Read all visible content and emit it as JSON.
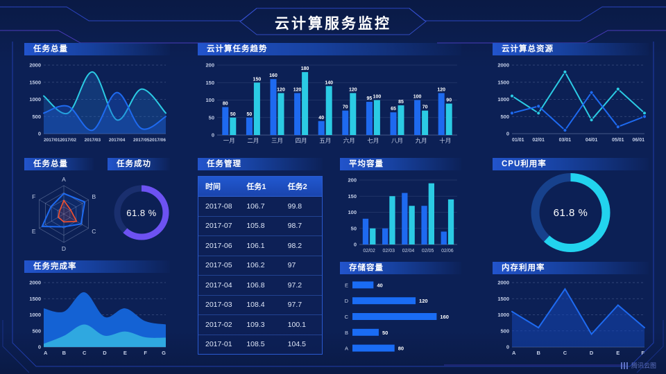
{
  "header": {
    "title": "云计算服务监控"
  },
  "watermark": {
    "label": "腾讯云图",
    "icon": "bars-logo-icon"
  },
  "panels": {
    "task_total_line": {
      "title": "任务总量"
    },
    "task_trend": {
      "title": "云计算任务趋势"
    },
    "cloud_resources": {
      "title": "云计算总资源"
    },
    "task_total_radar": {
      "title": "任务总量"
    },
    "task_success": {
      "title": "任务成功",
      "value": "61.8 %"
    },
    "task_table": {
      "title": "任务管理"
    },
    "avg_capacity": {
      "title": "平均容量"
    },
    "cpu_usage": {
      "title": "CPU利用率",
      "value": "61.8 %"
    },
    "task_completion": {
      "title": "任务完成率"
    },
    "storage": {
      "title": "存储容量"
    },
    "memory": {
      "title": "内存利用率"
    }
  },
  "table": {
    "columns": [
      "时间",
      "任务1",
      "任务2"
    ],
    "rows": [
      [
        "2017-08",
        "106.7",
        "99.8"
      ],
      [
        "2017-07",
        "105.8",
        "98.7"
      ],
      [
        "2017-06",
        "106.1",
        "98.2"
      ],
      [
        "2017-05",
        "106.2",
        "97"
      ],
      [
        "2017-04",
        "106.8",
        "97.2"
      ],
      [
        "2017-03",
        "108.4",
        "97.7"
      ],
      [
        "2017-02",
        "109.3",
        "100.1"
      ],
      [
        "2017-01",
        "108.5",
        "104.5"
      ]
    ]
  },
  "colors": {
    "blue": "#1e6af0",
    "cyan": "#2bcbe4",
    "purple": "#6d52f2",
    "orange": "#f4502e",
    "grid": "rgba(160,180,225,0.32)",
    "axis_text": "#c6d0e8",
    "frame_line": "#2945c0"
  },
  "chart_data": [
    {
      "id": "task_total_line",
      "type": "line",
      "title": "任务总量",
      "smooth": true,
      "area": true,
      "x": [
        "2017/01",
        "2017/02",
        "2017/03",
        "2017/04",
        "2017/05",
        "2017/06"
      ],
      "series": [
        {
          "name": "总量-cyan",
          "color": "#2bcbe4",
          "fill": "rgba(35,120,210,0.28)",
          "values": [
            1100,
            600,
            1800,
            400,
            1300,
            600
          ]
        },
        {
          "name": "总量-blue",
          "color": "#1e6af0",
          "fill": "rgba(25,90,210,0.38)",
          "values": [
            600,
            800,
            100,
            1200,
            150,
            500
          ]
        }
      ],
      "ylim": [
        0,
        2000
      ],
      "yticks": [
        0,
        500,
        1000,
        1500,
        2000
      ],
      "xfs": 6.5,
      "dashed_grid": true
    },
    {
      "id": "task_trend",
      "type": "bar",
      "title": "云计算任务趋势",
      "categories": [
        "一月",
        "二月",
        "三月",
        "四月",
        "五月",
        "六月",
        "七月",
        "八月",
        "九月",
        "十月"
      ],
      "series": [
        {
          "name": "任务1",
          "color": "#1e6af0",
          "values": [
            80,
            50,
            160,
            120,
            40,
            70,
            95,
            65,
            100,
            120
          ]
        },
        {
          "name": "任务2",
          "color": "#2bcbe4",
          "values": [
            50,
            150,
            120,
            180,
            140,
            120,
            100,
            85,
            70,
            90
          ]
        }
      ],
      "ylim": [
        0,
        200
      ],
      "yticks": [
        0,
        50,
        100,
        150,
        200
      ],
      "value_labels": true,
      "xfs": 8.5
    },
    {
      "id": "cloud_resources",
      "type": "line",
      "title": "云计算总资源",
      "smooth": false,
      "markers": true,
      "x": [
        "01/01",
        "02/01",
        "03/01",
        "04/01",
        "05/01",
        "06/01"
      ],
      "series": [
        {
          "name": "资源-cyan",
          "color": "#2bcbe4",
          "values": [
            1100,
            600,
            1800,
            400,
            1300,
            600
          ]
        },
        {
          "name": "资源-blue",
          "color": "#1e6af0",
          "values": [
            600,
            800,
            100,
            1200,
            200,
            500
          ]
        }
      ],
      "ylim": [
        0,
        2000
      ],
      "yticks": [
        0,
        500,
        1000,
        1500,
        2000
      ],
      "xfs": 7,
      "dashed_grid": true
    },
    {
      "id": "task_radar",
      "type": "radar",
      "title": "任务总量",
      "axes": [
        "A",
        "B",
        "C",
        "D",
        "E",
        "F"
      ],
      "max": 100,
      "series": [
        {
          "name": "radar-blue",
          "color": "#1e6af0",
          "fill": "rgba(30,106,240,0.12)",
          "values": [
            72,
            85,
            70,
            45,
            88,
            52
          ]
        },
        {
          "name": "radar-orange",
          "color": "#f4502e",
          "fill": "rgba(244,80,46,0.15)",
          "values": [
            48,
            28,
            52,
            28,
            22,
            18
          ]
        }
      ]
    },
    {
      "id": "task_success_gauge",
      "type": "donut",
      "title": "任务成功",
      "value": 61.8,
      "label": "61.8 %",
      "color": "#6d52f2",
      "track": "#1a2f6e",
      "stroke": 9
    },
    {
      "id": "avg_capacity",
      "type": "bar",
      "title": "平均容量",
      "categories": [
        "02/02",
        "02/03",
        "02/04",
        "02/05",
        "02/06"
      ],
      "series": [
        {
          "name": "容量1",
          "color": "#1e6af0",
          "values": [
            80,
            50,
            160,
            120,
            40
          ]
        },
        {
          "name": "容量2",
          "color": "#2bcbe4",
          "values": [
            50,
            150,
            120,
            190,
            140
          ]
        }
      ],
      "ylim": [
        0,
        200
      ],
      "yticks": [
        0,
        50,
        100,
        150,
        200
      ],
      "value_labels": false,
      "xfs": 7
    },
    {
      "id": "cpu_gauge",
      "type": "donut",
      "title": "CPU利用率",
      "value": 61.8,
      "label": "61.8 %",
      "color": "#22d3ee",
      "track": "#17418c",
      "stroke": 12
    },
    {
      "id": "task_completion",
      "type": "area",
      "title": "任务完成率",
      "smooth": true,
      "x": [
        "A",
        "B",
        "C",
        "D",
        "E",
        "F",
        "G"
      ],
      "series": [
        {
          "name": "完成-outer",
          "fill": "#1462d4",
          "values": [
            1200,
            1100,
            1700,
            930,
            1200,
            800,
            700
          ]
        },
        {
          "name": "完成-inner",
          "fill": "#2fa8e0",
          "values": [
            100,
            350,
            700,
            350,
            480,
            300,
            290
          ]
        }
      ],
      "ylim": [
        0,
        2000
      ],
      "yticks": [
        0,
        500,
        1000,
        1500,
        2000
      ],
      "xfs": 7.5,
      "dashed_grid": true
    },
    {
      "id": "storage",
      "type": "hbar",
      "title": "存储容量",
      "categories": [
        "E",
        "D",
        "C",
        "B",
        "A"
      ],
      "values": [
        40,
        120,
        160,
        50,
        80
      ],
      "color": "#1a6cf5",
      "xmax": 170
    },
    {
      "id": "memory",
      "type": "line",
      "title": "内存利用率",
      "smooth": false,
      "area": true,
      "x": [
        "A",
        "B",
        "C",
        "D",
        "E",
        "F"
      ],
      "series": [
        {
          "name": "内存",
          "color": "#1e6af0",
          "fill": "rgba(20,70,180,0.55)",
          "values": [
            1100,
            600,
            1800,
            400,
            1300,
            600
          ]
        }
      ],
      "ylim": [
        0,
        2000
      ],
      "yticks": [
        0,
        500,
        1000,
        1500,
        2000
      ],
      "xfs": 7.5,
      "dashed_grid": true
    }
  ]
}
